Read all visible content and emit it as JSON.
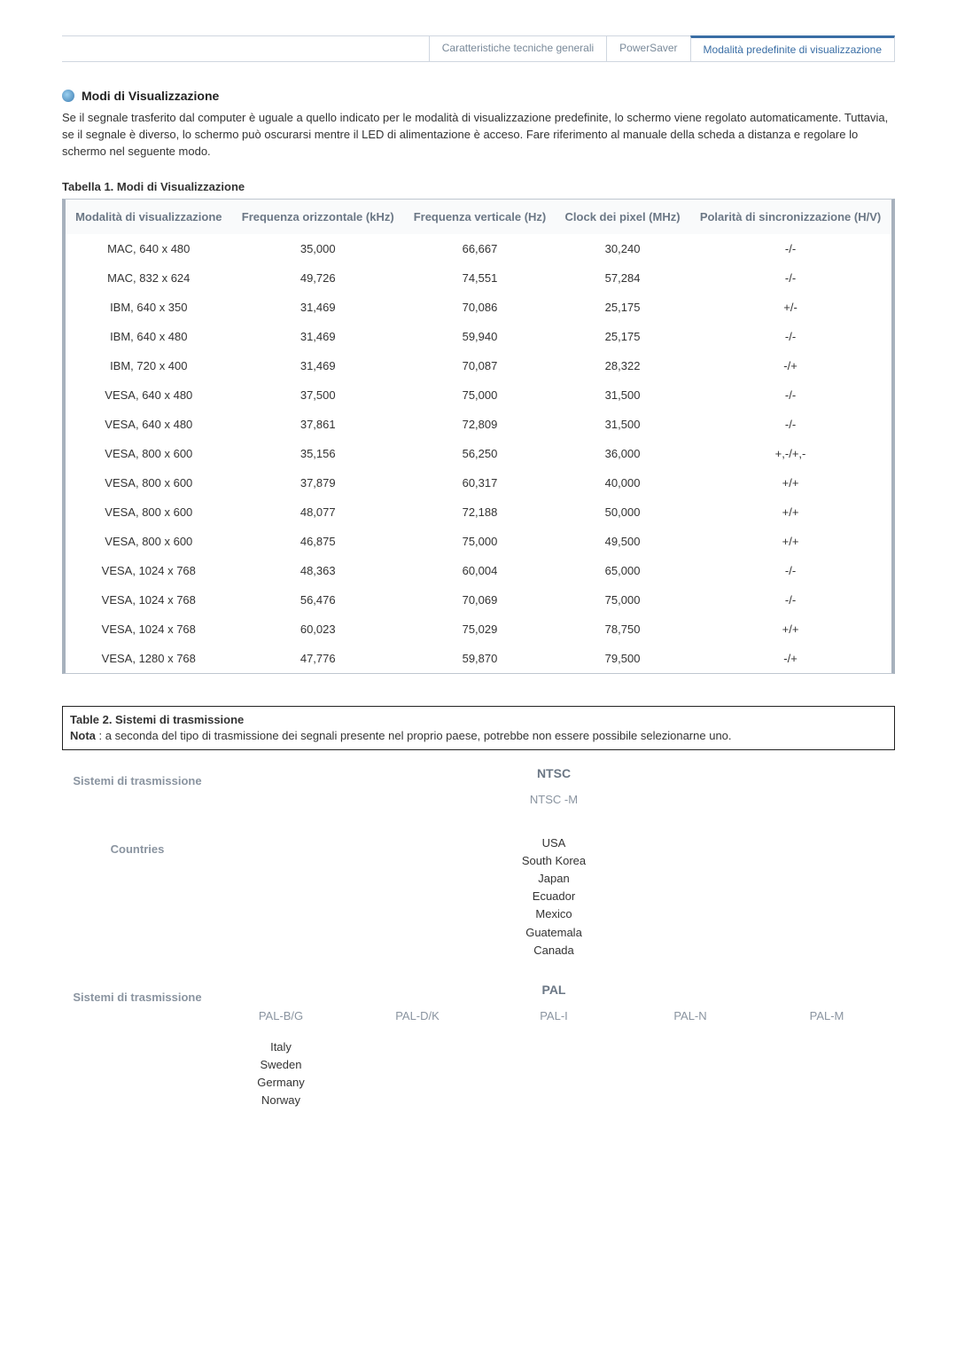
{
  "tabs": {
    "t1": "Caratteristiche tecniche generali",
    "t2": "PowerSaver",
    "t3": "Modalità predefinite di visualizzazione"
  },
  "section": {
    "title": "Modi di Visualizzazione",
    "intro": "Se il segnale trasferito dal computer è uguale a quello indicato per le modalità di visualizzazione predefinite, lo schermo viene regolato automaticamente. Tuttavia, se il segnale è diverso, lo schermo può oscurarsi mentre il LED di alimentazione è acceso. Fare riferimento al manuale della scheda a distanza e regolare lo schermo nel seguente modo."
  },
  "table1": {
    "caption": "Tabella 1. Modi di Visualizzazione",
    "headers": {
      "c0": "Modalità di visualizzazione",
      "c1": "Frequenza orizzontale (kHz)",
      "c2": "Frequenza verticale (Hz)",
      "c3": "Clock dei pixel (MHz)",
      "c4": "Polarità di sincronizzazione (H/V)"
    },
    "rows": [
      [
        "MAC, 640 x 480",
        "35,000",
        "66,667",
        "30,240",
        "-/-"
      ],
      [
        "MAC, 832 x 624",
        "49,726",
        "74,551",
        "57,284",
        "-/-"
      ],
      [
        "IBM, 640 x 350",
        "31,469",
        "70,086",
        "25,175",
        "+/-"
      ],
      [
        "IBM, 640 x 480",
        "31,469",
        "59,940",
        "25,175",
        "-/-"
      ],
      [
        "IBM, 720 x 400",
        "31,469",
        "70,087",
        "28,322",
        "-/+"
      ],
      [
        "VESA, 640 x 480",
        "37,500",
        "75,000",
        "31,500",
        "-/-"
      ],
      [
        "VESA, 640 x 480",
        "37,861",
        "72,809",
        "31,500",
        "-/-"
      ],
      [
        "VESA, 800 x 600",
        "35,156",
        "56,250",
        "36,000",
        "+,-/+,-"
      ],
      [
        "VESA, 800 x 600",
        "37,879",
        "60,317",
        "40,000",
        "+/+"
      ],
      [
        "VESA, 800 x 600",
        "48,077",
        "72,188",
        "50,000",
        "+/+"
      ],
      [
        "VESA, 800 x 600",
        "46,875",
        "75,000",
        "49,500",
        "+/+"
      ],
      [
        "VESA, 1024 x 768",
        "48,363",
        "60,004",
        "65,000",
        "-/-"
      ],
      [
        "VESA, 1024 x 768",
        "56,476",
        "70,069",
        "75,000",
        "-/-"
      ],
      [
        "VESA, 1024 x 768",
        "60,023",
        "75,029",
        "78,750",
        "+/+"
      ],
      [
        "VESA, 1280 x 768",
        "47,776",
        "59,870",
        "79,500",
        "-/+"
      ]
    ]
  },
  "table2": {
    "title": "Table 2. Sistemi di trasmissione",
    "note_label": "Nota",
    "note": " : a seconda del tipo di trasmissione dei segnali presente nel proprio paese, potrebbe non essere possibile selezionarne uno.",
    "labels": {
      "sistemi": "Sistemi di trasmissione",
      "countries": "Countries"
    },
    "ntsc": {
      "heading": "NTSC",
      "sub": "NTSC -M",
      "countries": "USA\nSouth Korea\nJapan\nEcuador\nMexico\nGuatemala\nCanada"
    },
    "pal": {
      "heading": "PAL",
      "cols": [
        "PAL-B/G",
        "PAL-D/K",
        "PAL-I",
        "PAL-N",
        "PAL-M"
      ],
      "countries0": "Italy\nSweden\nGermany\nNorway"
    }
  }
}
